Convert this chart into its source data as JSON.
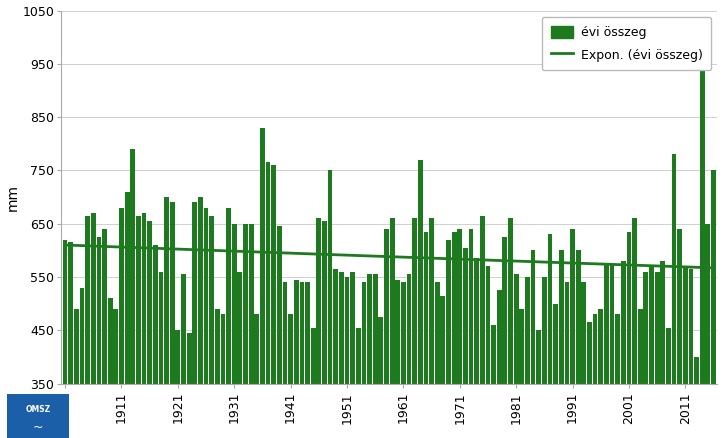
{
  "title": "",
  "ylabel": "mm",
  "bar_color": "#1e7a1e",
  "trend_color": "#1e7a1e",
  "background_color": "#ffffff",
  "plot_bg_color": "#ffffff",
  "ylim": [
    350,
    1050
  ],
  "yticks": [
    350,
    450,
    550,
    650,
    750,
    850,
    950,
    1050
  ],
  "start_year": 1901,
  "end_year": 2016,
  "legend_bar_label": "évi összeg",
  "legend_line_label": "Expon. (évi összeg)",
  "values": [
    620,
    615,
    490,
    530,
    665,
    670,
    625,
    640,
    510,
    490,
    680,
    710,
    790,
    665,
    670,
    655,
    610,
    560,
    700,
    690,
    450,
    555,
    445,
    690,
    700,
    680,
    665,
    490,
    480,
    680,
    650,
    560,
    650,
    650,
    480,
    830,
    765,
    760,
    645,
    540,
    480,
    545,
    540,
    540,
    455,
    660,
    655,
    750,
    565,
    560,
    550,
    560,
    455,
    540,
    555,
    555,
    475,
    640,
    660,
    545,
    540,
    555,
    660,
    770,
    635,
    660,
    540,
    515,
    620,
    635,
    640,
    605,
    640,
    585,
    665,
    570,
    460,
    525,
    625,
    660,
    555,
    490,
    550,
    600,
    450,
    550,
    630,
    500,
    600,
    540,
    640,
    600,
    540,
    465,
    480,
    490,
    575,
    575,
    480,
    580,
    635,
    660,
    490,
    560,
    570,
    560,
    580,
    455,
    780,
    640,
    570,
    565,
    400,
    950,
    650,
    750
  ],
  "figsize": [
    7.23,
    4.38
  ],
  "dpi": 100
}
